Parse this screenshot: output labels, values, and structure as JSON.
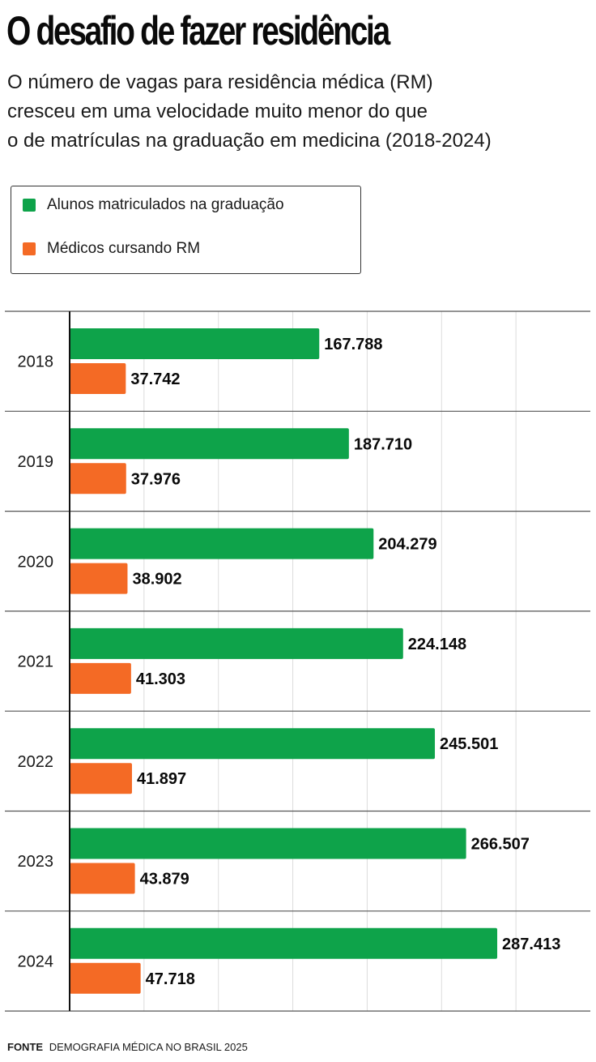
{
  "header": {
    "title": "O desafio de fazer residência",
    "subtitle_lines": [
      "O número de vagas para residência médica (RM)",
      "cresceu em uma velocidade muito menor do que",
      "o de matrículas na graduação em medicina (2018-2024)"
    ]
  },
  "legend": {
    "items": [
      {
        "label": "Alunos matriculados na graduação",
        "color": "#0ea34a"
      },
      {
        "label": "Médicos cursando RM",
        "color": "#f46a25"
      }
    ]
  },
  "footer": {
    "source_label": "FONTE",
    "source_text": "DEMOGRAFIA MÉDICA NO BRASIL 2025"
  },
  "chart_data": {
    "type": "bar",
    "orientation": "horizontal",
    "title": "O desafio de fazer residência",
    "categories": [
      "2018",
      "2019",
      "2020",
      "2021",
      "2022",
      "2023",
      "2024"
    ],
    "series": [
      {
        "name": "Alunos matriculados na graduação",
        "color": "#0ea34a",
        "values": [
          167788,
          187710,
          204279,
          224148,
          245501,
          266507,
          287413
        ],
        "labels": [
          "167.788",
          "187.710",
          "204.279",
          "224.148",
          "245.501",
          "266.507",
          "287.413"
        ]
      },
      {
        "name": "Médicos cursando RM",
        "color": "#f46a25",
        "values": [
          37742,
          37976,
          38902,
          41303,
          41897,
          43879,
          47718
        ],
        "labels": [
          "37.742",
          "37.976",
          "38.902",
          "41.303",
          "41.897",
          "43.879",
          "47.718"
        ]
      }
    ],
    "xlim": [
      0,
      350000
    ],
    "grid_step": 50000,
    "grid": true,
    "legend_position": "top-left",
    "xlabel": "",
    "ylabel": ""
  }
}
